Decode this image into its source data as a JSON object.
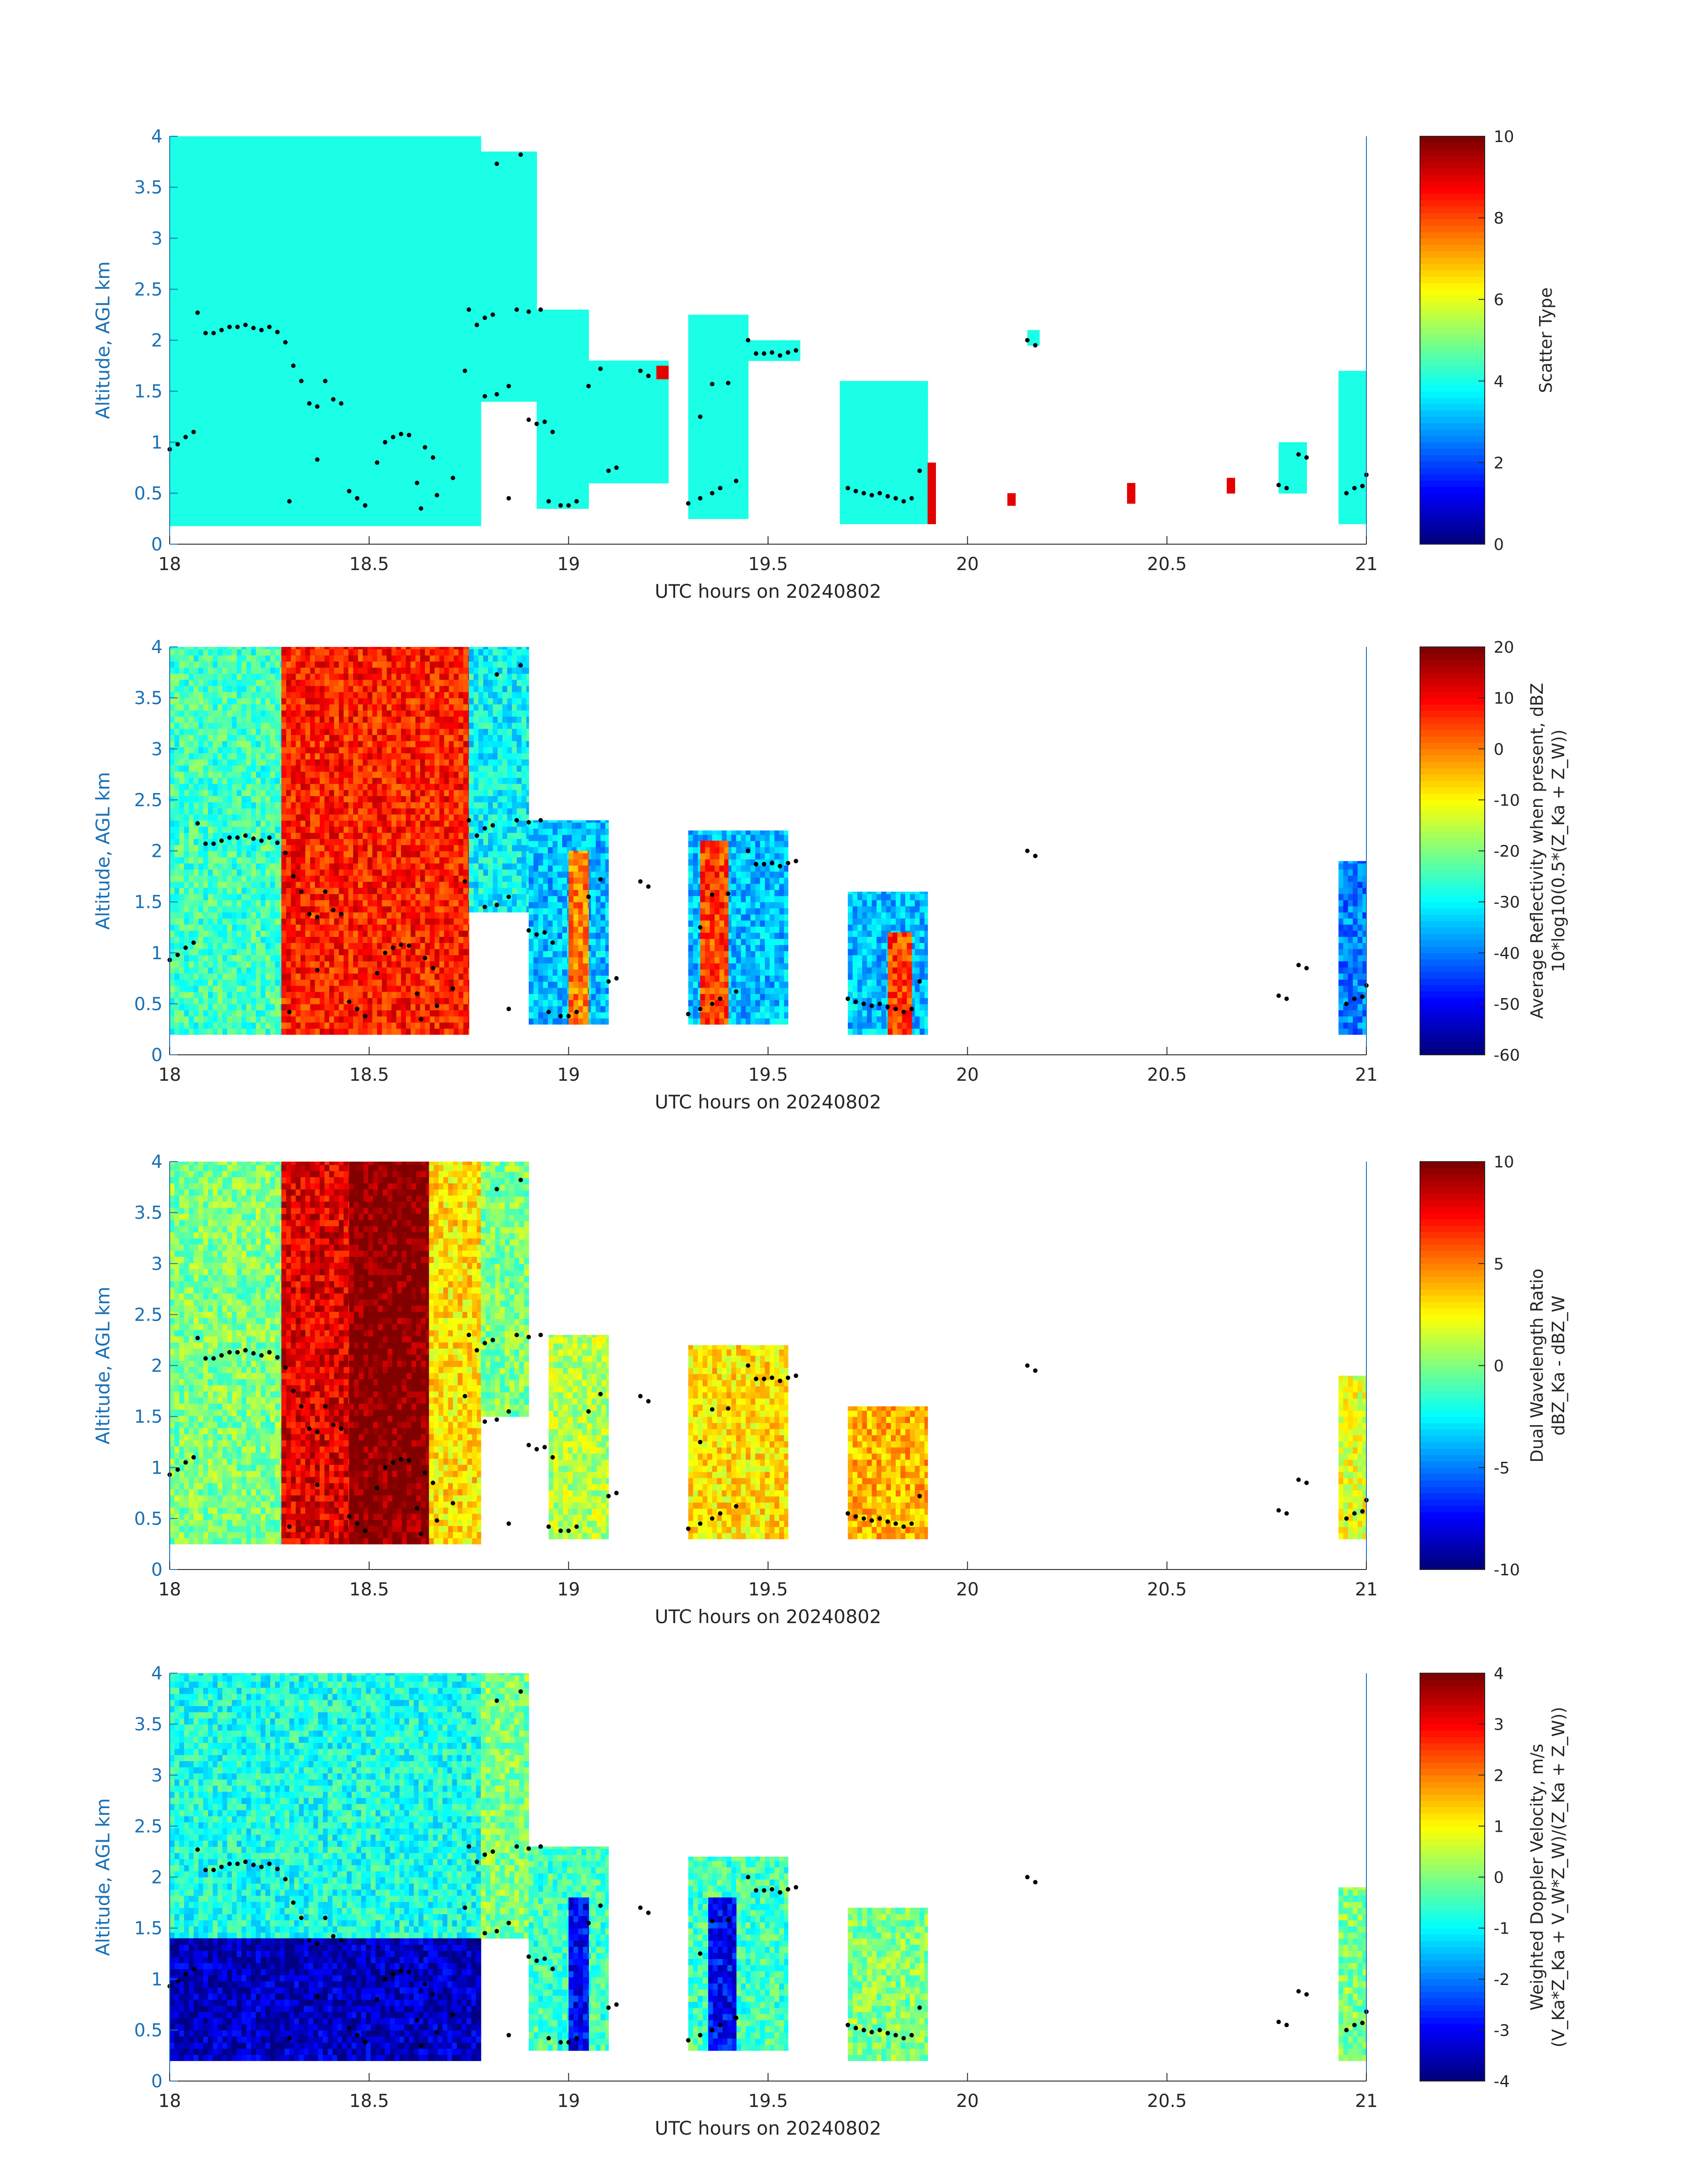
{
  "figure": {
    "x_range": [
      18,
      21
    ],
    "y_range": [
      0,
      4
    ],
    "x_ticks": [
      "18",
      "18.5",
      "19",
      "19.5",
      "20",
      "20.5",
      "21"
    ],
    "y_ticks": [
      "0",
      "0.5",
      "1",
      "1.5",
      "2",
      "2.5",
      "3",
      "3.5",
      "4"
    ],
    "xlabel": "UTC hours on 20240802",
    "ylabel": "Altitude, AGL km",
    "axis_color": "#1a70b5",
    "colormap": "jet"
  },
  "chart_data": [
    {
      "type": "heatmap",
      "title": "",
      "xlabel": "UTC hours on 20240802",
      "ylabel": "Altitude, AGL km",
      "xlim": [
        18,
        21
      ],
      "ylim": [
        0,
        4
      ],
      "colorbar": {
        "min": 0,
        "max": 10,
        "ticks": [
          "0",
          "2",
          "4",
          "6",
          "8",
          "10"
        ],
        "label": "Scatter Type",
        "label2": ""
      },
      "dominant_value": 4,
      "secondary_value": 9,
      "regions": [
        {
          "x": [
            18.0,
            18.78
          ],
          "y": [
            0.18,
            4.0
          ],
          "value": 4
        },
        {
          "x": [
            18.78,
            18.92
          ],
          "y": [
            1.4,
            3.85
          ],
          "value": 4
        },
        {
          "x": [
            18.92,
            19.05
          ],
          "y": [
            0.35,
            2.3
          ],
          "value": 4
        },
        {
          "x": [
            19.05,
            19.25
          ],
          "y": [
            0.6,
            1.8
          ],
          "value": 4
        },
        {
          "x": [
            19.3,
            19.45
          ],
          "y": [
            0.25,
            2.25
          ],
          "value": 4
        },
        {
          "x": [
            19.45,
            19.58
          ],
          "y": [
            1.8,
            2.0
          ],
          "value": 4
        },
        {
          "x": [
            19.68,
            19.9
          ],
          "y": [
            0.2,
            1.6
          ],
          "value": 4
        },
        {
          "x": [
            20.15,
            20.18
          ],
          "y": [
            1.95,
            2.1
          ],
          "value": 4
        },
        {
          "x": [
            20.78,
            20.85
          ],
          "y": [
            0.5,
            1.0
          ],
          "value": 4
        },
        {
          "x": [
            20.93,
            21.0
          ],
          "y": [
            0.2,
            1.7
          ],
          "value": 4
        },
        {
          "x": [
            19.9,
            19.92
          ],
          "y": [
            0.2,
            0.8
          ],
          "value": 9
        },
        {
          "x": [
            20.1,
            20.12
          ],
          "y": [
            0.38,
            0.5
          ],
          "value": 9
        },
        {
          "x": [
            20.4,
            20.42
          ],
          "y": [
            0.4,
            0.6
          ],
          "value": 9
        },
        {
          "x": [
            20.65,
            20.67
          ],
          "y": [
            0.5,
            0.65
          ],
          "value": 9
        },
        {
          "x": [
            19.22,
            19.25
          ],
          "y": [
            1.62,
            1.75
          ],
          "value": 9
        }
      ]
    },
    {
      "type": "heatmap",
      "title": "",
      "xlabel": "UTC hours on 20240802",
      "ylabel": "Altitude, AGL km",
      "xlim": [
        18,
        21
      ],
      "ylim": [
        0,
        4
      ],
      "colorbar": {
        "min": -60,
        "max": 20,
        "ticks": [
          "-60",
          "-50",
          "-40",
          "-30",
          "-20",
          "-10",
          "0",
          "10",
          "20"
        ],
        "label": "Average Reflectivity when present, dBZ",
        "label2": "10*log10(0.5*(Z_Ka + Z_W))"
      },
      "regions": [
        {
          "x": [
            18.0,
            18.28
          ],
          "y": [
            0.2,
            4.0
          ],
          "value": -25
        },
        {
          "x": [
            18.28,
            18.75
          ],
          "y": [
            0.2,
            4.0
          ],
          "value": 8
        },
        {
          "x": [
            18.75,
            18.9
          ],
          "y": [
            1.4,
            4.0
          ],
          "value": -30
        },
        {
          "x": [
            18.9,
            19.1
          ],
          "y": [
            0.3,
            2.3
          ],
          "value": -35
        },
        {
          "x": [
            19.0,
            19.05
          ],
          "y": [
            0.3,
            2.0
          ],
          "value": 0
        },
        {
          "x": [
            19.3,
            19.55
          ],
          "y": [
            0.3,
            2.2
          ],
          "value": -35
        },
        {
          "x": [
            19.33,
            19.4
          ],
          "y": [
            0.3,
            2.1
          ],
          "value": 5
        },
        {
          "x": [
            19.7,
            19.9
          ],
          "y": [
            0.2,
            1.6
          ],
          "value": -35
        },
        {
          "x": [
            19.8,
            19.86
          ],
          "y": [
            0.2,
            1.2
          ],
          "value": 5
        },
        {
          "x": [
            20.93,
            21.0
          ],
          "y": [
            0.2,
            1.9
          ],
          "value": -40
        }
      ]
    },
    {
      "type": "heatmap",
      "title": "",
      "xlabel": "UTC hours on 20240802",
      "ylabel": "Altitude, AGL km",
      "xlim": [
        18,
        21
      ],
      "ylim": [
        0,
        4
      ],
      "colorbar": {
        "min": -10,
        "max": 10,
        "ticks": [
          "-10",
          "-5",
          "0",
          "5",
          "10"
        ],
        "label": "Dual Wavelength Ratio",
        "label2": "dBZ_Ka - dBZ_W"
      },
      "regions": [
        {
          "x": [
            18.0,
            18.28
          ],
          "y": [
            0.25,
            4.0
          ],
          "value": 0
        },
        {
          "x": [
            18.28,
            18.45
          ],
          "y": [
            0.25,
            4.0
          ],
          "value": 8
        },
        {
          "x": [
            18.45,
            18.65
          ],
          "y": [
            0.25,
            4.0
          ],
          "value": 10
        },
        {
          "x": [
            18.65,
            18.78
          ],
          "y": [
            0.25,
            4.0
          ],
          "value": 3
        },
        {
          "x": [
            18.78,
            18.9
          ],
          "y": [
            1.5,
            4.0
          ],
          "value": 0
        },
        {
          "x": [
            18.95,
            19.1
          ],
          "y": [
            0.3,
            2.3
          ],
          "value": 1
        },
        {
          "x": [
            19.3,
            19.55
          ],
          "y": [
            0.3,
            2.2
          ],
          "value": 3
        },
        {
          "x": [
            19.7,
            19.9
          ],
          "y": [
            0.3,
            1.6
          ],
          "value": 4
        },
        {
          "x": [
            20.93,
            21.0
          ],
          "y": [
            0.3,
            1.9
          ],
          "value": 2
        }
      ]
    },
    {
      "type": "heatmap",
      "title": "",
      "xlabel": "UTC hours on 20240802",
      "ylabel": "Altitude, AGL km",
      "xlim": [
        18,
        21
      ],
      "ylim": [
        0,
        4
      ],
      "colorbar": {
        "min": -4,
        "max": 4,
        "ticks": [
          "-4",
          "-3",
          "-2",
          "-1",
          "0",
          "1",
          "2",
          "3",
          "4"
        ],
        "label": "Weighted Doppler Velocity, m/s",
        "label2": "(V_Ka*Z_Ka + V_W*Z_W)/(Z_Ka + Z_W))"
      },
      "regions": [
        {
          "x": [
            18.0,
            18.78
          ],
          "y": [
            1.4,
            4.0
          ],
          "value": -0.8
        },
        {
          "x": [
            18.0,
            18.78
          ],
          "y": [
            0.2,
            1.4
          ],
          "value": -3.5
        },
        {
          "x": [
            18.78,
            18.9
          ],
          "y": [
            1.4,
            4.0
          ],
          "value": 0
        },
        {
          "x": [
            18.9,
            19.1
          ],
          "y": [
            0.3,
            2.3
          ],
          "value": -0.5
        },
        {
          "x": [
            19.0,
            19.05
          ],
          "y": [
            0.3,
            1.8
          ],
          "value": -3
        },
        {
          "x": [
            19.3,
            19.55
          ],
          "y": [
            0.3,
            2.2
          ],
          "value": -0.5
        },
        {
          "x": [
            19.35,
            19.42
          ],
          "y": [
            0.3,
            1.8
          ],
          "value": -3
        },
        {
          "x": [
            19.7,
            19.9
          ],
          "y": [
            0.2,
            1.7
          ],
          "value": 0
        },
        {
          "x": [
            20.93,
            21.0
          ],
          "y": [
            0.2,
            1.9
          ],
          "value": 0
        }
      ]
    }
  ],
  "overlay": {
    "marker": "black dots",
    "points": [
      [
        18.0,
        0.93
      ],
      [
        18.02,
        0.98
      ],
      [
        18.04,
        1.05
      ],
      [
        18.06,
        1.1
      ],
      [
        18.07,
        2.27
      ],
      [
        18.09,
        2.07
      ],
      [
        18.11,
        2.07
      ],
      [
        18.13,
        2.1
      ],
      [
        18.15,
        2.13
      ],
      [
        18.17,
        2.13
      ],
      [
        18.19,
        2.15
      ],
      [
        18.21,
        2.12
      ],
      [
        18.23,
        2.1
      ],
      [
        18.25,
        2.13
      ],
      [
        18.27,
        2.08
      ],
      [
        18.29,
        1.98
      ],
      [
        18.31,
        1.75
      ],
      [
        18.33,
        1.6
      ],
      [
        18.35,
        1.38
      ],
      [
        18.37,
        1.35
      ],
      [
        18.39,
        1.6
      ],
      [
        18.41,
        1.42
      ],
      [
        18.43,
        1.38
      ],
      [
        18.37,
        0.83
      ],
      [
        18.3,
        0.42
      ],
      [
        18.45,
        0.52
      ],
      [
        18.47,
        0.45
      ],
      [
        18.49,
        0.38
      ],
      [
        18.52,
        0.8
      ],
      [
        18.54,
        1.0
      ],
      [
        18.56,
        1.05
      ],
      [
        18.58,
        1.08
      ],
      [
        18.6,
        1.07
      ],
      [
        18.64,
        0.95
      ],
      [
        18.66,
        0.85
      ],
      [
        18.62,
        0.6
      ],
      [
        18.63,
        0.35
      ],
      [
        18.67,
        0.48
      ],
      [
        18.71,
        0.65
      ],
      [
        18.74,
        1.7
      ],
      [
        18.75,
        2.3
      ],
      [
        18.77,
        2.15
      ],
      [
        18.79,
        2.22
      ],
      [
        18.81,
        2.25
      ],
      [
        18.79,
        1.45
      ],
      [
        18.82,
        1.47
      ],
      [
        18.85,
        1.55
      ],
      [
        18.82,
        3.73
      ],
      [
        18.88,
        3.82
      ],
      [
        18.87,
        2.3
      ],
      [
        18.9,
        2.28
      ],
      [
        18.93,
        2.3
      ],
      [
        18.9,
        1.22
      ],
      [
        18.92,
        1.18
      ],
      [
        18.94,
        1.2
      ],
      [
        18.96,
        1.1
      ],
      [
        18.85,
        0.45
      ],
      [
        18.95,
        0.42
      ],
      [
        18.98,
        0.38
      ],
      [
        19.0,
        0.38
      ],
      [
        19.02,
        0.42
      ],
      [
        19.1,
        0.72
      ],
      [
        19.12,
        0.75
      ],
      [
        19.05,
        1.55
      ],
      [
        19.08,
        1.72
      ],
      [
        19.18,
        1.7
      ],
      [
        19.2,
        1.65
      ],
      [
        19.3,
        0.4
      ],
      [
        19.33,
        0.45
      ],
      [
        19.36,
        0.5
      ],
      [
        19.38,
        0.55
      ],
      [
        19.42,
        0.62
      ],
      [
        19.33,
        1.25
      ],
      [
        19.36,
        1.57
      ],
      [
        19.4,
        1.58
      ],
      [
        19.45,
        2.0
      ],
      [
        19.47,
        1.87
      ],
      [
        19.49,
        1.87
      ],
      [
        19.51,
        1.88
      ],
      [
        19.53,
        1.85
      ],
      [
        19.55,
        1.88
      ],
      [
        19.57,
        1.9
      ],
      [
        19.7,
        0.55
      ],
      [
        19.72,
        0.52
      ],
      [
        19.74,
        0.5
      ],
      [
        19.76,
        0.48
      ],
      [
        19.78,
        0.5
      ],
      [
        19.8,
        0.47
      ],
      [
        19.82,
        0.45
      ],
      [
        19.84,
        0.42
      ],
      [
        19.86,
        0.45
      ],
      [
        19.88,
        0.72
      ],
      [
        20.15,
        2.0
      ],
      [
        20.17,
        1.95
      ],
      [
        20.78,
        0.58
      ],
      [
        20.8,
        0.55
      ],
      [
        20.83,
        0.88
      ],
      [
        20.85,
        0.85
      ],
      [
        20.95,
        0.5
      ],
      [
        20.97,
        0.55
      ],
      [
        20.99,
        0.57
      ],
      [
        21.0,
        0.68
      ]
    ]
  }
}
